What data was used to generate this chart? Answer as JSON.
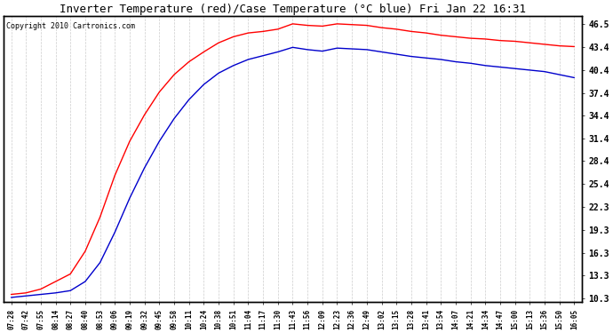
{
  "title": "Inverter Temperature (red)/Case Temperature (°C blue) Fri Jan 22 16:31",
  "copyright": "Copyright 2010 Cartronics.com",
  "yticks": [
    10.3,
    13.3,
    16.3,
    19.3,
    22.3,
    25.4,
    28.4,
    31.4,
    34.4,
    37.4,
    40.4,
    43.4,
    46.5
  ],
  "ymin": 9.8,
  "ymax": 47.5,
  "bg_color": "#ffffff",
  "plot_bg_color": "#ffffff",
  "grid_color": "#cccccc",
  "red_color": "#ff0000",
  "blue_color": "#0000cc",
  "x_labels": [
    "07:28",
    "07:42",
    "07:55",
    "08:14",
    "08:27",
    "08:40",
    "08:53",
    "09:06",
    "09:19",
    "09:32",
    "09:45",
    "09:58",
    "10:11",
    "10:24",
    "10:38",
    "10:51",
    "11:04",
    "11:17",
    "11:30",
    "11:43",
    "11:56",
    "12:09",
    "12:23",
    "12:36",
    "12:49",
    "13:02",
    "13:15",
    "13:28",
    "13:41",
    "13:54",
    "14:07",
    "14:21",
    "14:34",
    "14:47",
    "15:00",
    "15:13",
    "15:36",
    "15:50",
    "16:05"
  ],
  "red_y": [
    10.8,
    11.0,
    11.5,
    12.5,
    13.5,
    16.5,
    21.0,
    26.5,
    31.0,
    34.5,
    37.5,
    39.8,
    41.5,
    42.8,
    44.0,
    44.8,
    45.3,
    45.5,
    45.8,
    46.5,
    46.3,
    46.2,
    46.5,
    46.4,
    46.3,
    46.0,
    45.8,
    45.5,
    45.3,
    45.0,
    44.8,
    44.6,
    44.5,
    44.3,
    44.2,
    44.0,
    43.8,
    43.6,
    43.5
  ],
  "blue_y": [
    10.4,
    10.6,
    10.8,
    11.0,
    11.3,
    12.5,
    15.0,
    19.0,
    23.5,
    27.5,
    31.0,
    34.0,
    36.5,
    38.5,
    40.0,
    41.0,
    41.8,
    42.3,
    42.8,
    43.4,
    43.1,
    42.9,
    43.3,
    43.2,
    43.1,
    42.8,
    42.5,
    42.2,
    42.0,
    41.8,
    41.5,
    41.3,
    41.0,
    40.8,
    40.6,
    40.4,
    40.2,
    39.8,
    39.4
  ]
}
